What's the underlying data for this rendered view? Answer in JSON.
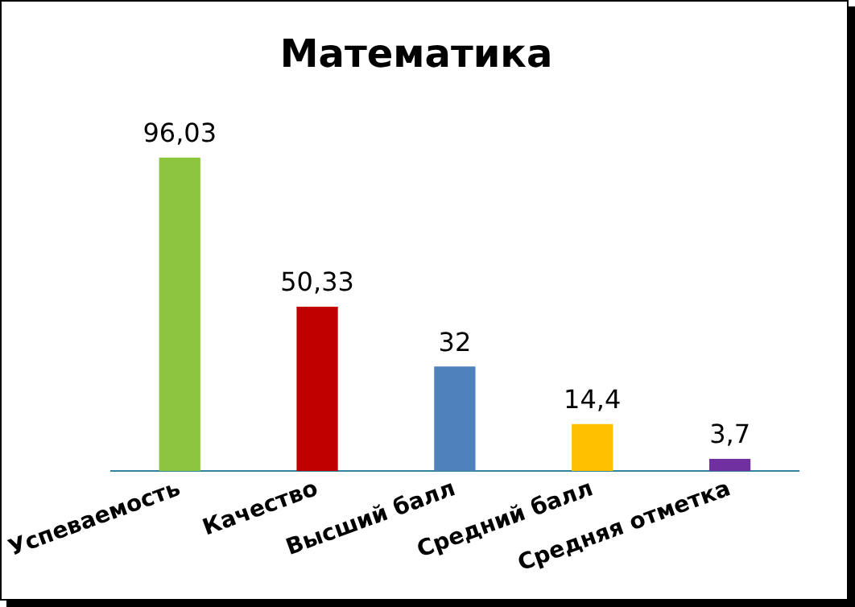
{
  "chart_data": {
    "type": "bar",
    "title": "Математика",
    "categories": [
      "Успеваемость",
      "Качество",
      "Высший балл",
      "Средний балл",
      "Средняя отметка"
    ],
    "values": [
      96.03,
      50.33,
      32,
      14.4,
      3.7
    ],
    "value_labels": [
      "96,03",
      "50,33",
      "32",
      "14,4",
      "3,7"
    ],
    "colors": [
      "#8cc63f",
      "#c00000",
      "#4f81bd",
      "#ffc000",
      "#7030a0"
    ],
    "grid": false,
    "legend": false
  }
}
